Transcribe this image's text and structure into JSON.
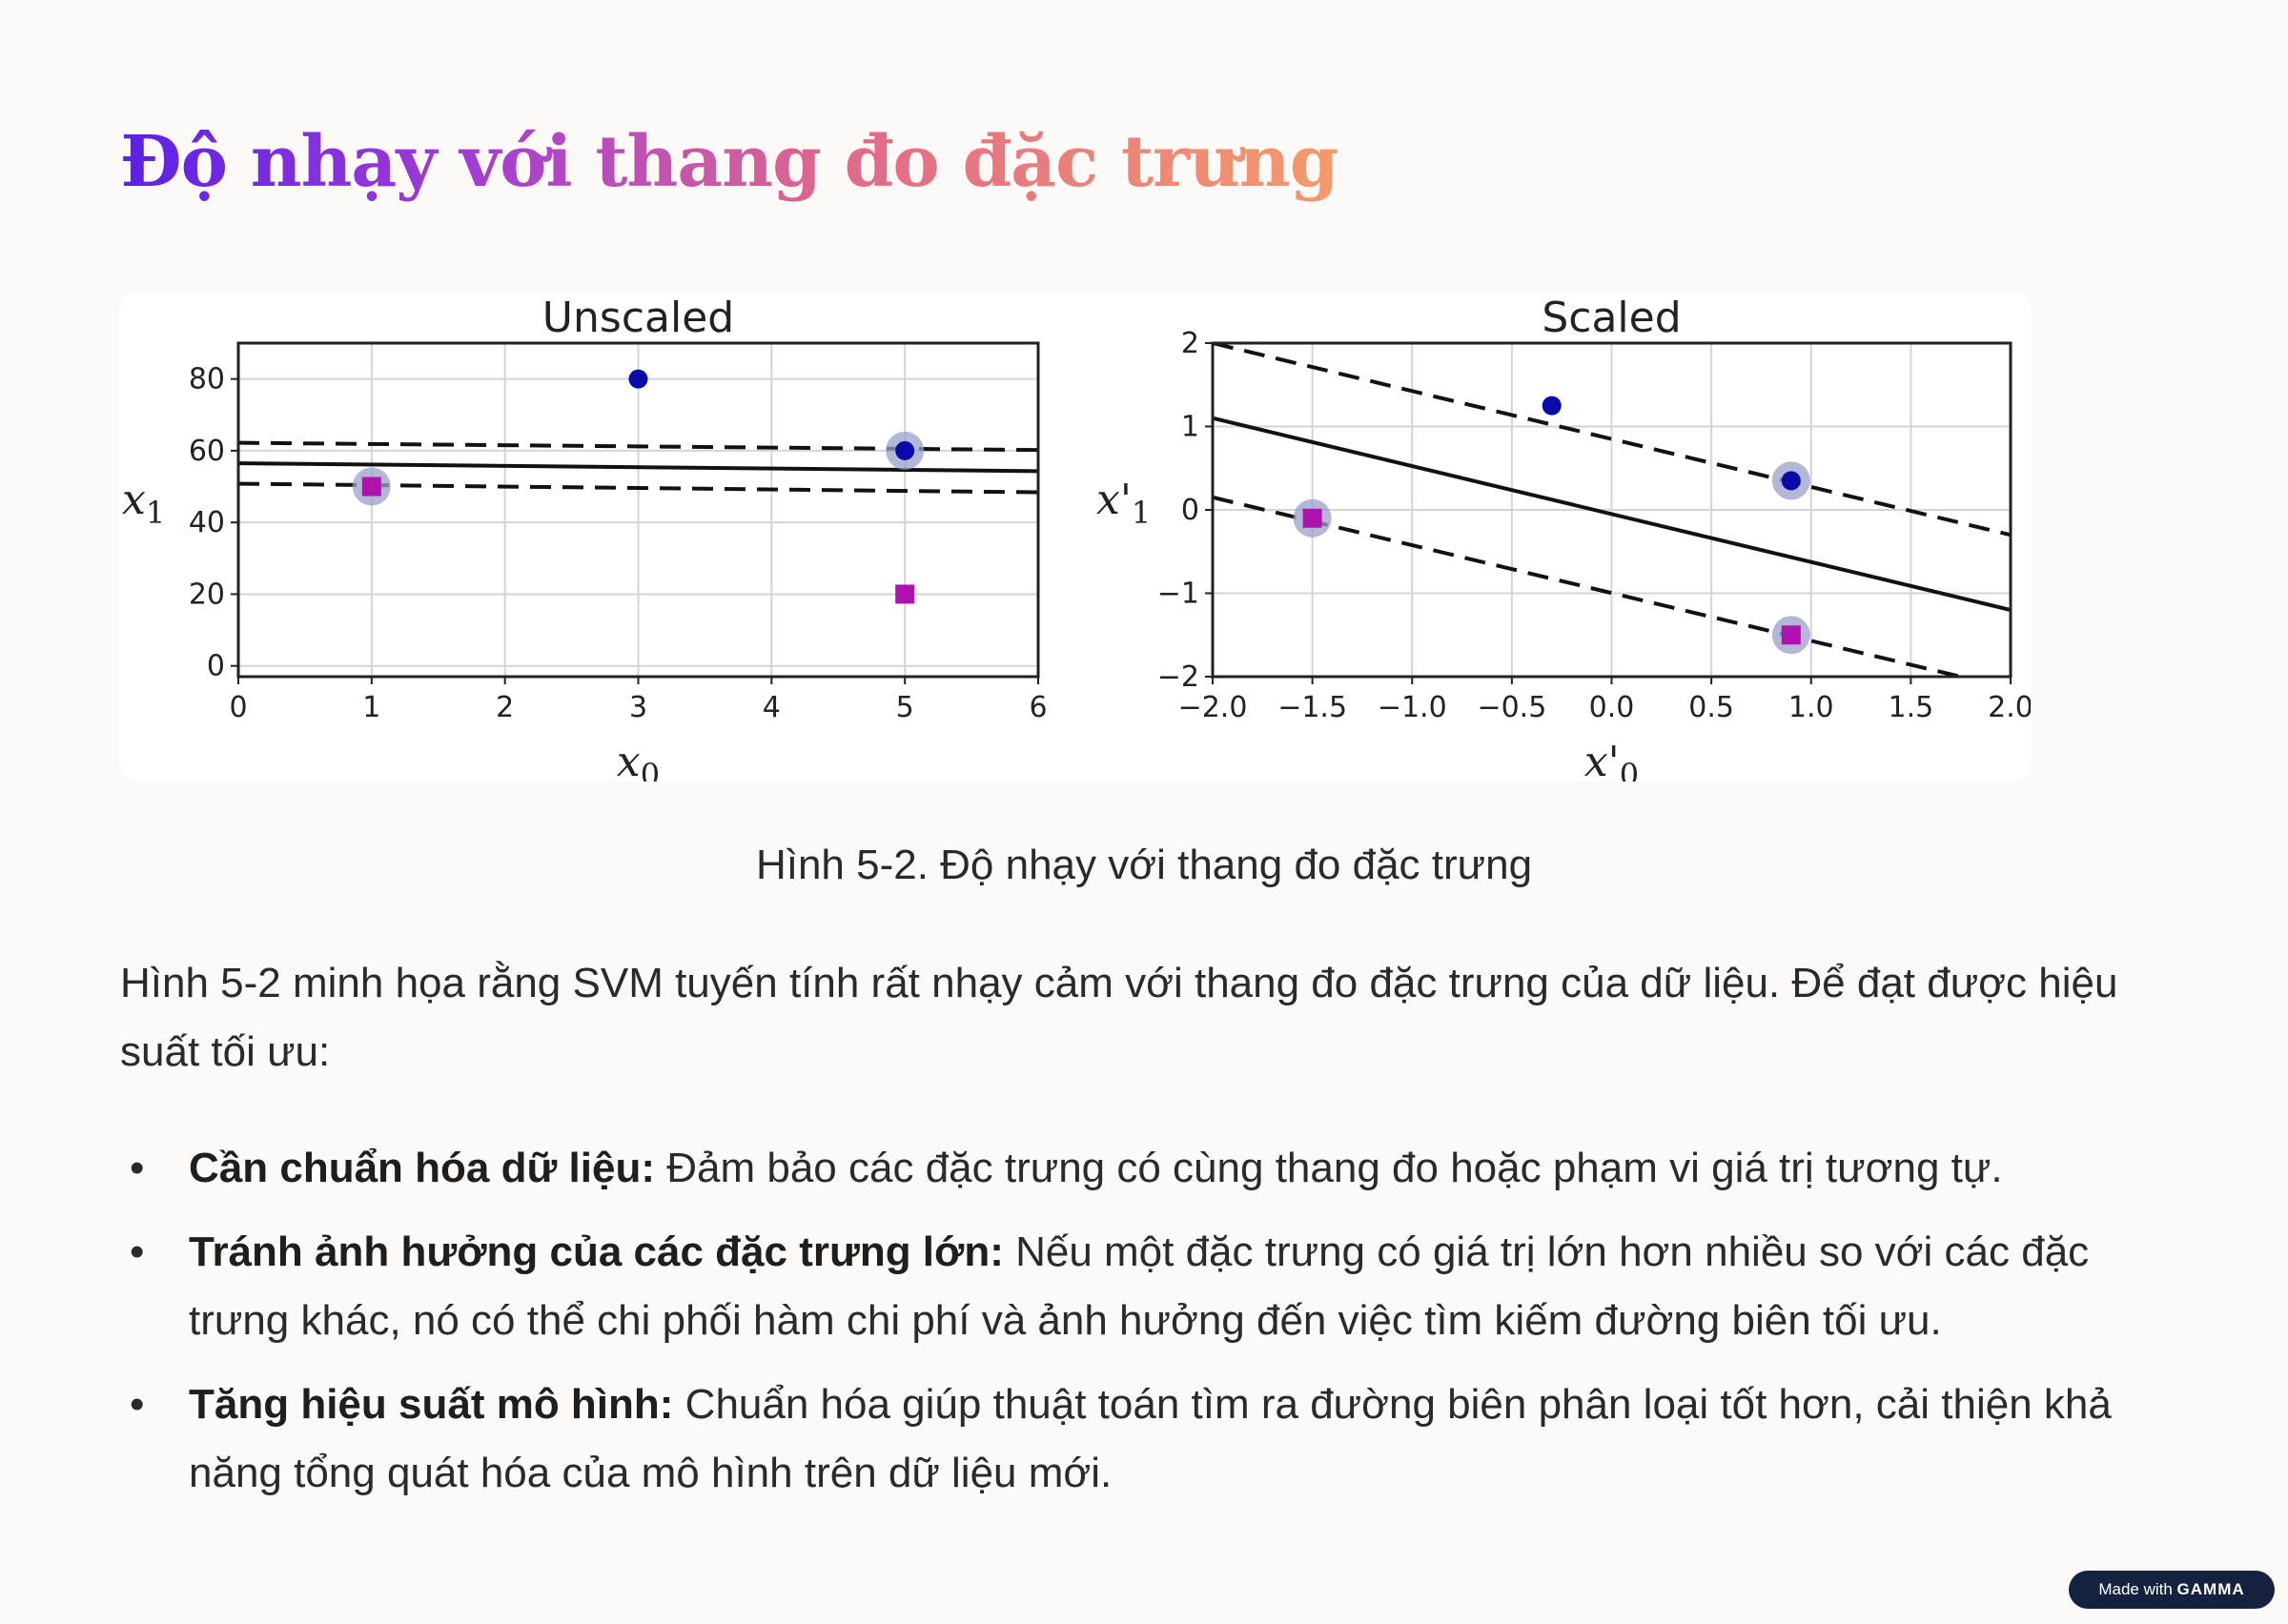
{
  "title": "Độ nhạy với thang đo đặc trưng",
  "caption": "Hình 5-2. Độ nhạy với thang đo đặc trưng",
  "intro": "Hình 5-2 minh họa rằng SVM tuyến tính rất nhạy cảm với thang đo đặc trưng của dữ liệu. Để đạt được hiệu suất tối ưu:",
  "bullets": [
    {
      "bold": "Cần chuẩn hóa dữ liệu:",
      "text": " Đảm bảo các đặc trưng có cùng thang đo hoặc phạm vi giá trị tương tự."
    },
    {
      "bold": "Tránh ảnh hưởng của các đặc trưng lớn:",
      "text": " Nếu một đặc trưng có giá trị lớn hơn nhiều so với các đặc trưng khác, nó có thể chi phối hàm chi phí và ảnh hưởng đến việc tìm kiếm đường biên tối ưu."
    },
    {
      "bold": "Tăng hiệu suất mô hình:",
      "text": " Chuẩn hóa giúp thuật toán tìm ra đường biên phân loại tốt hơn, cải thiện khả năng tổng quát hóa của mô hình trên dữ liệu mới."
    }
  ],
  "badge": {
    "prefix": "Made with",
    "brand": "GAMMA"
  },
  "colors": {
    "positive": "#0a0aa8",
    "negative": "#b012b0",
    "support_halo": "#9aa0c8"
  },
  "chart_data": [
    {
      "type": "scatter",
      "title": "Unscaled",
      "xlabel": "x0",
      "ylabel": "x1",
      "xlim": [
        0,
        6
      ],
      "ylim": [
        -3,
        90
      ],
      "xticks": [
        "0",
        "1",
        "2",
        "3",
        "4",
        "5",
        "6"
      ],
      "yticks": [
        "0",
        "20",
        "40",
        "60",
        "80"
      ],
      "grid": true,
      "series": [
        {
          "class": "positive",
          "marker": "circle",
          "points": [
            [
              3,
              80
            ],
            [
              5,
              60
            ]
          ]
        },
        {
          "class": "negative",
          "marker": "square",
          "points": [
            [
              1,
              50
            ],
            [
              5,
              20
            ]
          ]
        }
      ],
      "support_vectors": [
        [
          1,
          50
        ],
        [
          5,
          60
        ]
      ],
      "lines": [
        {
          "style": "solid",
          "points": [
            [
              0,
              56.5
            ],
            [
              6,
              54.3
            ]
          ]
        },
        {
          "style": "dashed",
          "points": [
            [
              0,
              62.2
            ],
            [
              6,
              60.2
            ]
          ]
        },
        {
          "style": "dashed",
          "points": [
            [
              0,
              50.8
            ],
            [
              6,
              48.4
            ]
          ]
        }
      ]
    },
    {
      "type": "scatter",
      "title": "Scaled",
      "xlabel": "x'0",
      "ylabel": "x'1",
      "xlim": [
        -2.0,
        2.0
      ],
      "ylim": [
        -2,
        2
      ],
      "xticks": [
        "−2.0",
        "−1.5",
        "−1.0",
        "−0.5",
        "0.0",
        "0.5",
        "1.0",
        "1.5",
        "2.0"
      ],
      "yticks": [
        "−2",
        "−1",
        "0",
        "1",
        "2"
      ],
      "grid": true,
      "series": [
        {
          "class": "positive",
          "marker": "circle",
          "points": [
            [
              -0.3,
              1.25
            ],
            [
              0.9,
              0.35
            ]
          ]
        },
        {
          "class": "negative",
          "marker": "square",
          "points": [
            [
              -1.5,
              -0.1
            ],
            [
              0.9,
              -1.5
            ]
          ]
        }
      ],
      "support_vectors": [
        [
          -1.5,
          -0.1
        ],
        [
          0.9,
          0.35
        ],
        [
          0.9,
          -1.5
        ]
      ],
      "lines": [
        {
          "style": "solid",
          "points": [
            [
              -2.0,
              1.1
            ],
            [
              2.0,
              -1.2
            ]
          ]
        },
        {
          "style": "dashed",
          "points": [
            [
              -2.0,
              2.0
            ],
            [
              2.0,
              -0.3
            ]
          ]
        },
        {
          "style": "dashed",
          "points": [
            [
              -2.0,
              0.15
            ],
            [
              1.75,
              -2.0
            ]
          ]
        }
      ]
    }
  ]
}
